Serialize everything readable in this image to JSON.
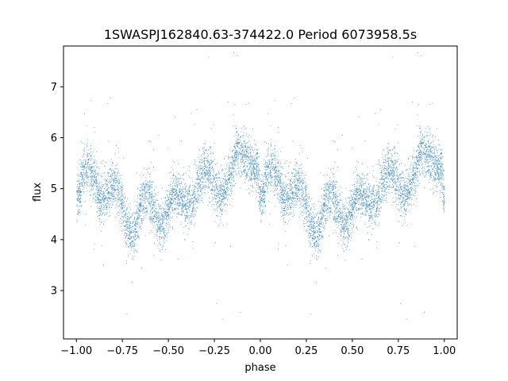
{
  "chart_data": {
    "type": "scatter",
    "title": "1SWASPJ162840.63-374422.0 Period 6073958.5s",
    "xlabel": "phase",
    "ylabel": "flux",
    "xlim": [
      -1.07,
      1.07
    ],
    "ylim": [
      2.05,
      7.8
    ],
    "xticks": [
      -1.0,
      -0.75,
      -0.5,
      -0.25,
      0.0,
      0.25,
      0.5,
      0.75,
      1.0
    ],
    "xtick_labels": [
      "−1.00",
      "−0.75",
      "−0.50",
      "−0.25",
      "0.00",
      "0.25",
      "0.50",
      "0.75",
      "1.00"
    ],
    "yticks": [
      3,
      4,
      5,
      6,
      7
    ],
    "ytick_labels": [
      "3",
      "4",
      "5",
      "6",
      "7"
    ],
    "grid": false,
    "marker_color": "#1f77b4",
    "trend": {
      "phase": [
        0.0,
        0.02,
        0.06,
        0.1,
        0.14,
        0.2,
        0.25,
        0.3,
        0.35,
        0.4,
        0.45,
        0.5,
        0.55,
        0.6,
        0.65,
        0.7,
        0.75,
        0.8,
        0.85,
        0.9,
        0.95,
        0.98,
        1.0
      ],
      "flux": [
        4.8,
        4.9,
        5.1,
        5.3,
        5.1,
        4.8,
        4.6,
        4.4,
        4.5,
        4.6,
        4.6,
        4.7,
        4.5,
        4.9,
        5.2,
        5.0,
        5.1,
        5.3,
        5.2,
        5.6,
        5.8,
        5.6,
        4.7
      ]
    },
    "scatter_sd": 0.33,
    "points_per_cycle": 5500
  }
}
